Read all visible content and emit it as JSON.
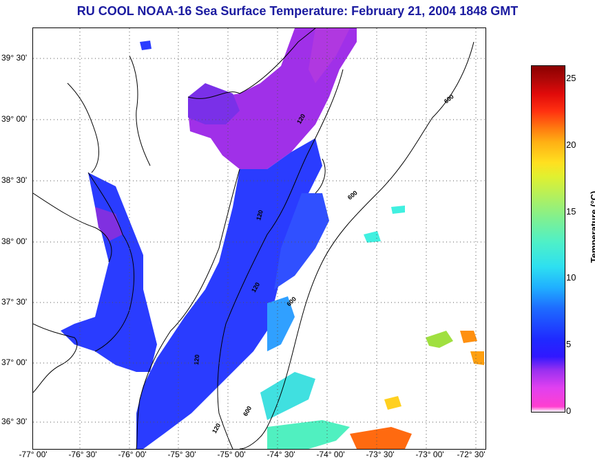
{
  "header": {
    "title": "RU COOL  NOAA-16  Sea Surface Temperature:  February 21, 2004 1848 GMT"
  },
  "map": {
    "lat_labels": [
      "39° 30'",
      "39° 00'",
      "38° 30'",
      "38° 00'",
      "37° 30'",
      "37° 00'",
      "36° 30'"
    ],
    "lon_labels": [
      "-77° 00'",
      "-76° 30'",
      "-76° 00'",
      "-75° 30'",
      "-75° 00'",
      "-74° 30'",
      "-74° 00'",
      "-73° 30'",
      "-73° 00'",
      "-72° 30'"
    ],
    "isobaths": [
      "120",
      "600"
    ]
  },
  "colorbar": {
    "ticks": [
      "25",
      "20",
      "15",
      "10",
      "5",
      "0"
    ],
    "label": "Temperature (°C)",
    "range_c": [
      0,
      26
    ]
  },
  "colors": {
    "title": "#1b1ba0",
    "cold": "#ff3fd0",
    "mid": "#1f2aff",
    "warm": "#8a0000"
  }
}
